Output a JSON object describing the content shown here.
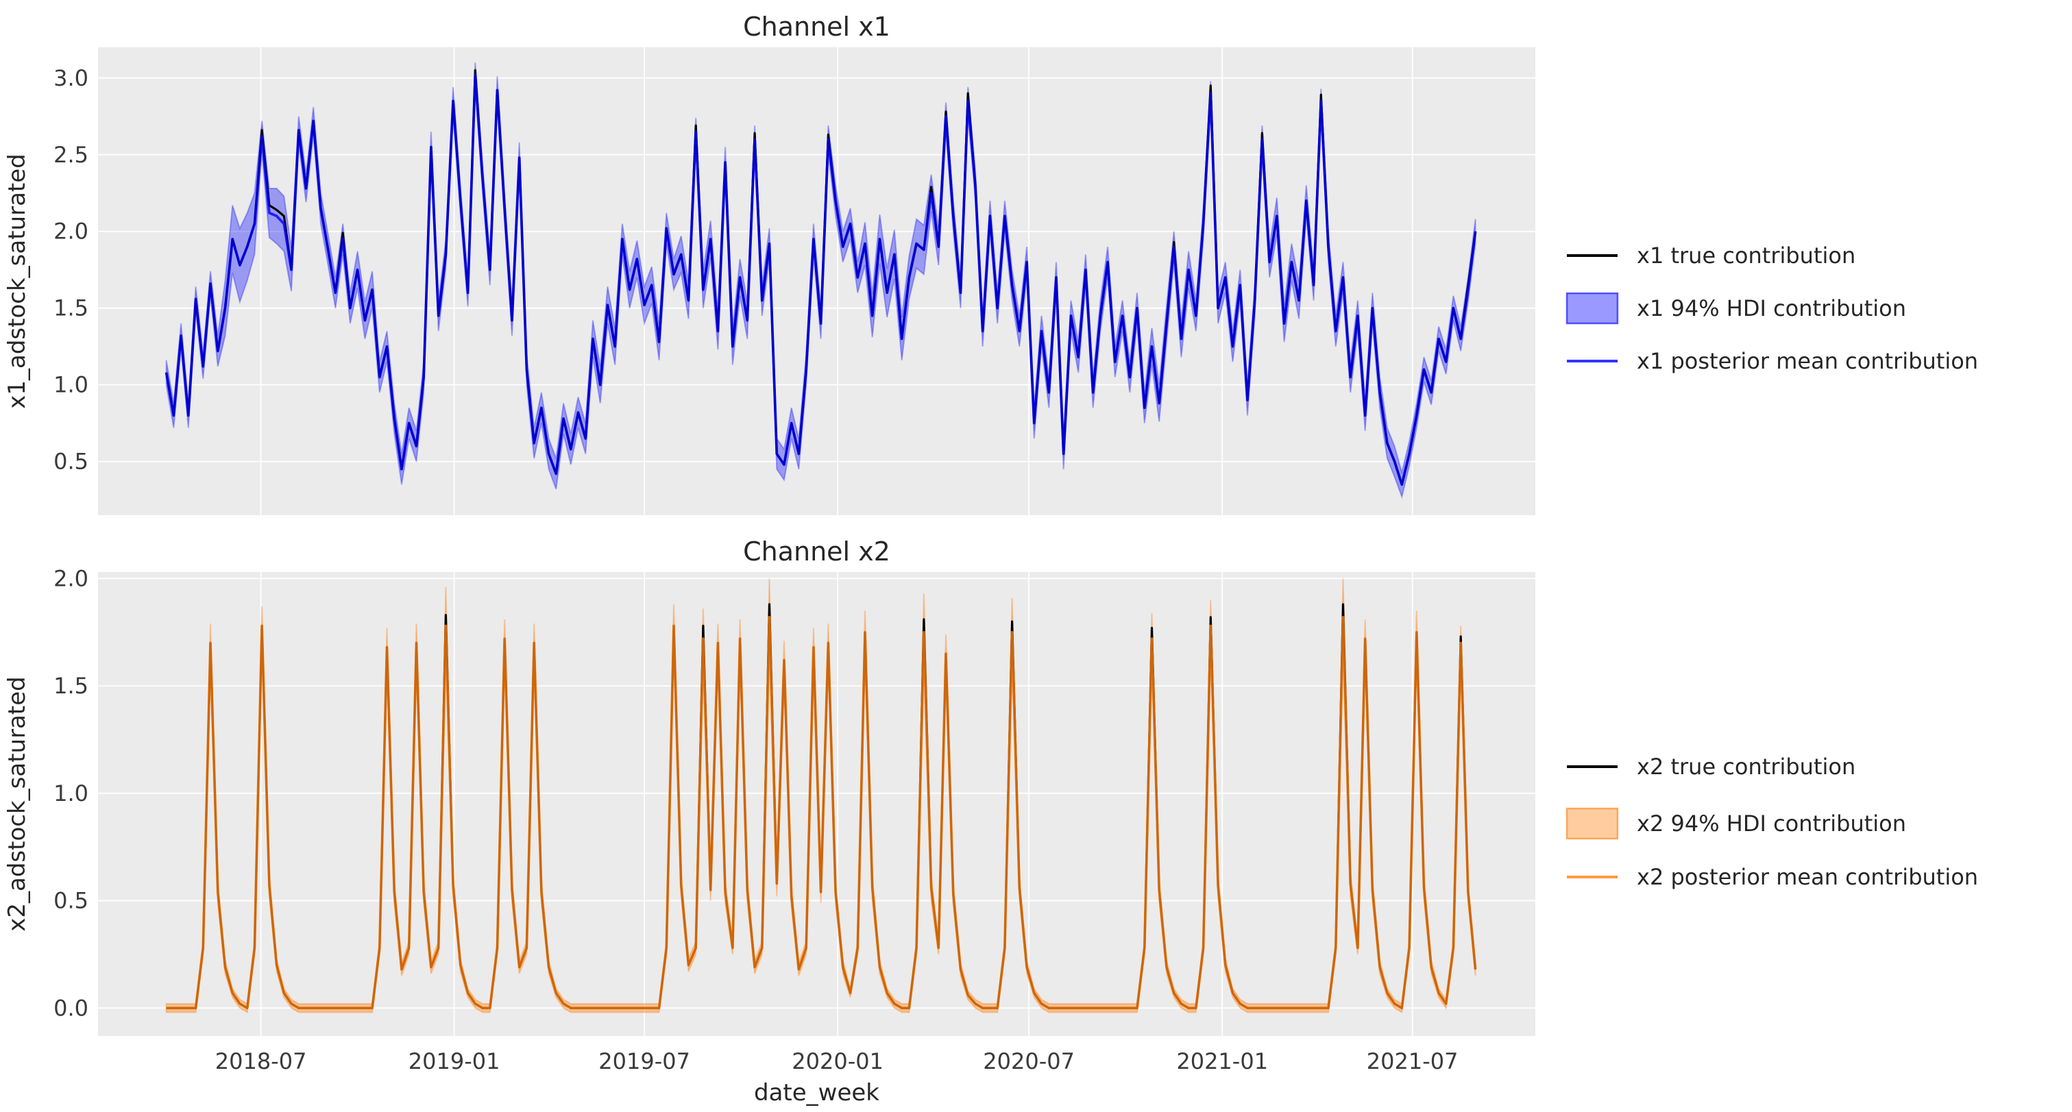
{
  "figure": {
    "bg": "#ffffff",
    "axes_bg": "#ebebeb",
    "grid_color": "#ffffff",
    "title_color": "#262626",
    "tick_color": "#3a3a3a"
  },
  "x_axis": {
    "label": "date_week",
    "start_date": "2018-04-02",
    "freq_days": 7,
    "n_points": 179,
    "xlim": [
      "2018-01-27",
      "2021-10-26"
    ],
    "tick_dates": [
      "2018-07-01",
      "2019-01-01",
      "2019-07-01",
      "2020-01-01",
      "2020-07-01",
      "2021-01-01",
      "2021-07-01"
    ],
    "tick_labels": [
      "2018-07",
      "2019-01",
      "2019-07",
      "2020-01",
      "2020-07",
      "2021-01",
      "2021-07"
    ]
  },
  "chart_data": [
    {
      "type": "line",
      "id": "x1",
      "title": "Channel x1",
      "ylabel": "x1_adstock_saturated",
      "ylim": [
        0.15,
        3.2
      ],
      "yticks": [
        0.5,
        1.0,
        1.5,
        2.0,
        2.5,
        3.0
      ],
      "grid": true,
      "legend_position": "right",
      "colors": {
        "base": "0,0,255",
        "mean_line": "rgba(0,0,255,0.8)",
        "band_fill": "rgba(0,0,255,0.35)",
        "band_edge": "rgba(0,0,255,0.3)",
        "true_line": "#000000"
      },
      "legend": [
        "x1 true contribution",
        "x1 94% HDI contribution",
        "x1 posterior mean contribution"
      ],
      "mean": [
        1.08,
        0.8,
        1.32,
        0.8,
        1.56,
        1.12,
        1.66,
        1.22,
        1.5,
        1.95,
        1.78,
        1.9,
        2.05,
        2.62,
        2.12,
        2.1,
        2.05,
        1.75,
        2.66,
        2.28,
        2.72,
        2.15,
        1.88,
        1.6,
        1.95,
        1.5,
        1.75,
        1.42,
        1.62,
        1.05,
        1.25,
        0.78,
        0.45,
        0.75,
        0.6,
        1.05,
        2.55,
        1.45,
        1.85,
        2.85,
        2.2,
        1.6,
        3.02,
        2.35,
        1.75,
        2.92,
        2.15,
        1.42,
        2.48,
        1.1,
        0.62,
        0.85,
        0.55,
        0.42,
        0.78,
        0.58,
        0.82,
        0.65,
        1.3,
        1.0,
        1.52,
        1.25,
        1.95,
        1.62,
        1.82,
        1.52,
        1.65,
        1.28,
        2.02,
        1.72,
        1.85,
        1.55,
        2.65,
        1.62,
        1.95,
        1.35,
        2.45,
        1.25,
        1.7,
        1.42,
        2.6,
        1.55,
        1.92,
        0.55,
        0.48,
        0.75,
        0.55,
        1.1,
        1.95,
        1.4,
        2.6,
        2.2,
        1.9,
        2.05,
        1.7,
        1.92,
        1.45,
        1.95,
        1.6,
        1.85,
        1.3,
        1.7,
        1.92,
        1.88,
        2.25,
        1.9,
        2.75,
        2.1,
        1.6,
        2.85,
        2.3,
        1.35,
        2.1,
        1.5,
        2.1,
        1.65,
        1.35,
        1.8,
        0.75,
        1.35,
        0.95,
        1.7,
        0.55,
        1.45,
        1.18,
        1.75,
        0.95,
        1.45,
        1.8,
        1.15,
        1.45,
        1.05,
        1.5,
        0.85,
        1.25,
        0.88,
        1.4,
        1.9,
        1.3,
        1.75,
        1.45,
        2.05,
        2.9,
        1.5,
        1.7,
        1.25,
        1.65,
        0.9,
        1.55,
        2.6,
        1.8,
        2.1,
        1.4,
        1.8,
        1.55,
        2.2,
        1.65,
        2.85,
        1.9,
        1.35,
        1.7,
        1.05,
        1.45,
        0.8,
        1.5,
        0.95,
        0.62,
        0.5,
        0.35,
        0.55,
        0.8,
        1.1,
        0.95,
        1.3,
        1.15,
        1.5,
        1.3,
        1.62,
        2.0
      ],
      "hdi_halfwidth": [
        0.08,
        0.08,
        0.08,
        0.08,
        0.08,
        0.08,
        0.08,
        0.1,
        0.18,
        0.22,
        0.24,
        0.22,
        0.2,
        0.1,
        0.16,
        0.18,
        0.18,
        0.14,
        0.09,
        0.09,
        0.09,
        0.1,
        0.1,
        0.1,
        0.1,
        0.1,
        0.12,
        0.12,
        0.12,
        0.1,
        0.1,
        0.1,
        0.1,
        0.1,
        0.1,
        0.1,
        0.1,
        0.1,
        0.09,
        0.09,
        0.09,
        0.09,
        0.08,
        0.09,
        0.1,
        0.09,
        0.09,
        0.1,
        0.1,
        0.1,
        0.1,
        0.1,
        0.1,
        0.1,
        0.1,
        0.1,
        0.1,
        0.1,
        0.12,
        0.12,
        0.12,
        0.12,
        0.1,
        0.12,
        0.12,
        0.12,
        0.12,
        0.12,
        0.1,
        0.1,
        0.12,
        0.12,
        0.09,
        0.12,
        0.12,
        0.12,
        0.1,
        0.12,
        0.12,
        0.12,
        0.09,
        0.1,
        0.1,
        0.1,
        0.1,
        0.1,
        0.1,
        0.1,
        0.1,
        0.1,
        0.09,
        0.1,
        0.1,
        0.1,
        0.1,
        0.14,
        0.14,
        0.16,
        0.16,
        0.16,
        0.14,
        0.14,
        0.16,
        0.16,
        0.12,
        0.12,
        0.09,
        0.1,
        0.1,
        0.09,
        0.1,
        0.1,
        0.1,
        0.1,
        0.1,
        0.1,
        0.1,
        0.1,
        0.1,
        0.1,
        0.1,
        0.1,
        0.1,
        0.1,
        0.1,
        0.1,
        0.1,
        0.1,
        0.1,
        0.1,
        0.1,
        0.1,
        0.1,
        0.1,
        0.12,
        0.12,
        0.12,
        0.1,
        0.12,
        0.12,
        0.1,
        0.1,
        0.08,
        0.1,
        0.1,
        0.1,
        0.1,
        0.1,
        0.1,
        0.09,
        0.1,
        0.12,
        0.12,
        0.12,
        0.12,
        0.1,
        0.1,
        0.08,
        0.1,
        0.1,
        0.1,
        0.1,
        0.1,
        0.1,
        0.1,
        0.1,
        0.1,
        0.1,
        0.08,
        0.08,
        0.08,
        0.08,
        0.08,
        0.08,
        0.08,
        0.08,
        0.08,
        0.08,
        0.08
      ],
      "true_offsets": {
        "13": 0.04,
        "14": 0.05,
        "15": 0.04,
        "16": 0.05,
        "24": 0.04,
        "42": 0.03,
        "72": 0.04,
        "80": 0.04,
        "90": 0.03,
        "104": 0.04,
        "106": 0.03,
        "109": 0.05,
        "137": 0.03,
        "142": 0.05,
        "149": 0.04,
        "157": 0.04,
        "177": 0.03
      }
    },
    {
      "type": "line",
      "id": "x2",
      "title": "Channel x2",
      "ylabel": "x2_adstock_saturated",
      "ylim": [
        -0.13,
        2.03
      ],
      "yticks": [
        0.0,
        0.5,
        1.0,
        1.5,
        2.0
      ],
      "grid": true,
      "legend_position": "right",
      "colors": {
        "base": "255,127,14",
        "mean_line": "rgba(255,127,14,0.8)",
        "band_fill": "rgba(255,127,14,0.4)",
        "band_edge": "rgba(255,127,14,0.35)",
        "true_line": "#000000"
      },
      "legend": [
        "x2 true contribution",
        "x2 94% HDI contribution",
        "x2 posterior mean contribution"
      ],
      "mean": [
        0,
        0,
        0,
        0,
        0,
        0.28,
        1.7,
        0.54,
        0.19,
        0.07,
        0.02,
        0,
        0.28,
        1.78,
        0.57,
        0.2,
        0.07,
        0.02,
        0,
        0,
        0,
        0,
        0,
        0,
        0,
        0,
        0,
        0,
        0,
        0.28,
        1.68,
        0.54,
        0.18,
        0.28,
        1.7,
        0.54,
        0.19,
        0.28,
        1.78,
        0.57,
        0.2,
        0.07,
        0.02,
        0,
        0,
        0.28,
        1.72,
        0.55,
        0.19,
        0.28,
        1.7,
        0.54,
        0.19,
        0.07,
        0.02,
        0,
        0,
        0,
        0,
        0,
        0,
        0,
        0,
        0,
        0,
        0,
        0,
        0,
        0.28,
        1.78,
        0.57,
        0.2,
        0.28,
        1.72,
        0.55,
        1.7,
        0.54,
        0.28,
        1.72,
        0.55,
        0.19,
        0.28,
        1.82,
        0.58,
        1.62,
        0.52,
        0.18,
        0.28,
        1.68,
        0.54,
        1.7,
        0.54,
        0.19,
        0.07,
        0.28,
        1.75,
        0.56,
        0.19,
        0.07,
        0.02,
        0,
        0,
        0.28,
        1.75,
        0.56,
        0.28,
        1.65,
        0.53,
        0.18,
        0.06,
        0.02,
        0,
        0,
        0,
        0.28,
        1.75,
        0.56,
        0.19,
        0.07,
        0.02,
        0,
        0,
        0,
        0,
        0,
        0,
        0,
        0,
        0,
        0,
        0,
        0,
        0,
        0.28,
        1.72,
        0.55,
        0.19,
        0.07,
        0.02,
        0,
        0,
        0.28,
        1.78,
        0.57,
        0.2,
        0.07,
        0.02,
        0,
        0,
        0,
        0,
        0,
        0,
        0,
        0,
        0,
        0,
        0,
        0,
        0.28,
        1.82,
        0.58,
        0.28,
        1.72,
        0.55,
        0.19,
        0.07,
        0.02,
        0,
        0.28,
        1.75,
        0.56,
        0.19,
        0.07,
        0.02,
        0.28,
        1.7,
        0.54,
        0.18
      ],
      "hdi_halfwidth": [
        0.02,
        0.02,
        0.02,
        0.02,
        0.02,
        0.03,
        0.09,
        0.05,
        0.03,
        0.02,
        0.02,
        0.02,
        0.03,
        0.09,
        0.05,
        0.03,
        0.02,
        0.02,
        0.02,
        0.02,
        0.02,
        0.02,
        0.02,
        0.02,
        0.02,
        0.02,
        0.02,
        0.02,
        0.02,
        0.03,
        0.09,
        0.05,
        0.03,
        0.03,
        0.09,
        0.05,
        0.03,
        0.03,
        0.18,
        0.05,
        0.03,
        0.02,
        0.02,
        0.02,
        0.02,
        0.03,
        0.09,
        0.05,
        0.03,
        0.03,
        0.09,
        0.05,
        0.03,
        0.02,
        0.02,
        0.02,
        0.02,
        0.02,
        0.02,
        0.02,
        0.02,
        0.02,
        0.02,
        0.02,
        0.02,
        0.02,
        0.02,
        0.02,
        0.03,
        0.1,
        0.05,
        0.03,
        0.03,
        0.14,
        0.05,
        0.09,
        0.05,
        0.03,
        0.09,
        0.05,
        0.03,
        0.03,
        0.18,
        0.06,
        0.09,
        0.05,
        0.03,
        0.03,
        0.09,
        0.05,
        0.09,
        0.05,
        0.03,
        0.02,
        0.03,
        0.1,
        0.05,
        0.03,
        0.02,
        0.02,
        0.02,
        0.02,
        0.03,
        0.18,
        0.06,
        0.03,
        0.09,
        0.05,
        0.03,
        0.02,
        0.02,
        0.02,
        0.02,
        0.02,
        0.03,
        0.16,
        0.05,
        0.03,
        0.02,
        0.02,
        0.02,
        0.02,
        0.02,
        0.02,
        0.02,
        0.02,
        0.02,
        0.02,
        0.02,
        0.02,
        0.02,
        0.02,
        0.02,
        0.03,
        0.12,
        0.05,
        0.03,
        0.02,
        0.02,
        0.02,
        0.02,
        0.03,
        0.12,
        0.05,
        0.03,
        0.02,
        0.02,
        0.02,
        0.02,
        0.02,
        0.02,
        0.02,
        0.02,
        0.02,
        0.02,
        0.02,
        0.02,
        0.02,
        0.02,
        0.03,
        0.18,
        0.06,
        0.03,
        0.09,
        0.05,
        0.03,
        0.02,
        0.02,
        0.02,
        0.03,
        0.1,
        0.05,
        0.03,
        0.02,
        0.02,
        0.03,
        0.08,
        0.04,
        0.03
      ],
      "true_offsets": {
        "38": 0.05,
        "73": 0.06,
        "82": 0.06,
        "103": 0.06,
        "115": 0.05,
        "134": 0.05,
        "142": 0.04,
        "160": 0.06,
        "176": 0.03
      }
    }
  ]
}
